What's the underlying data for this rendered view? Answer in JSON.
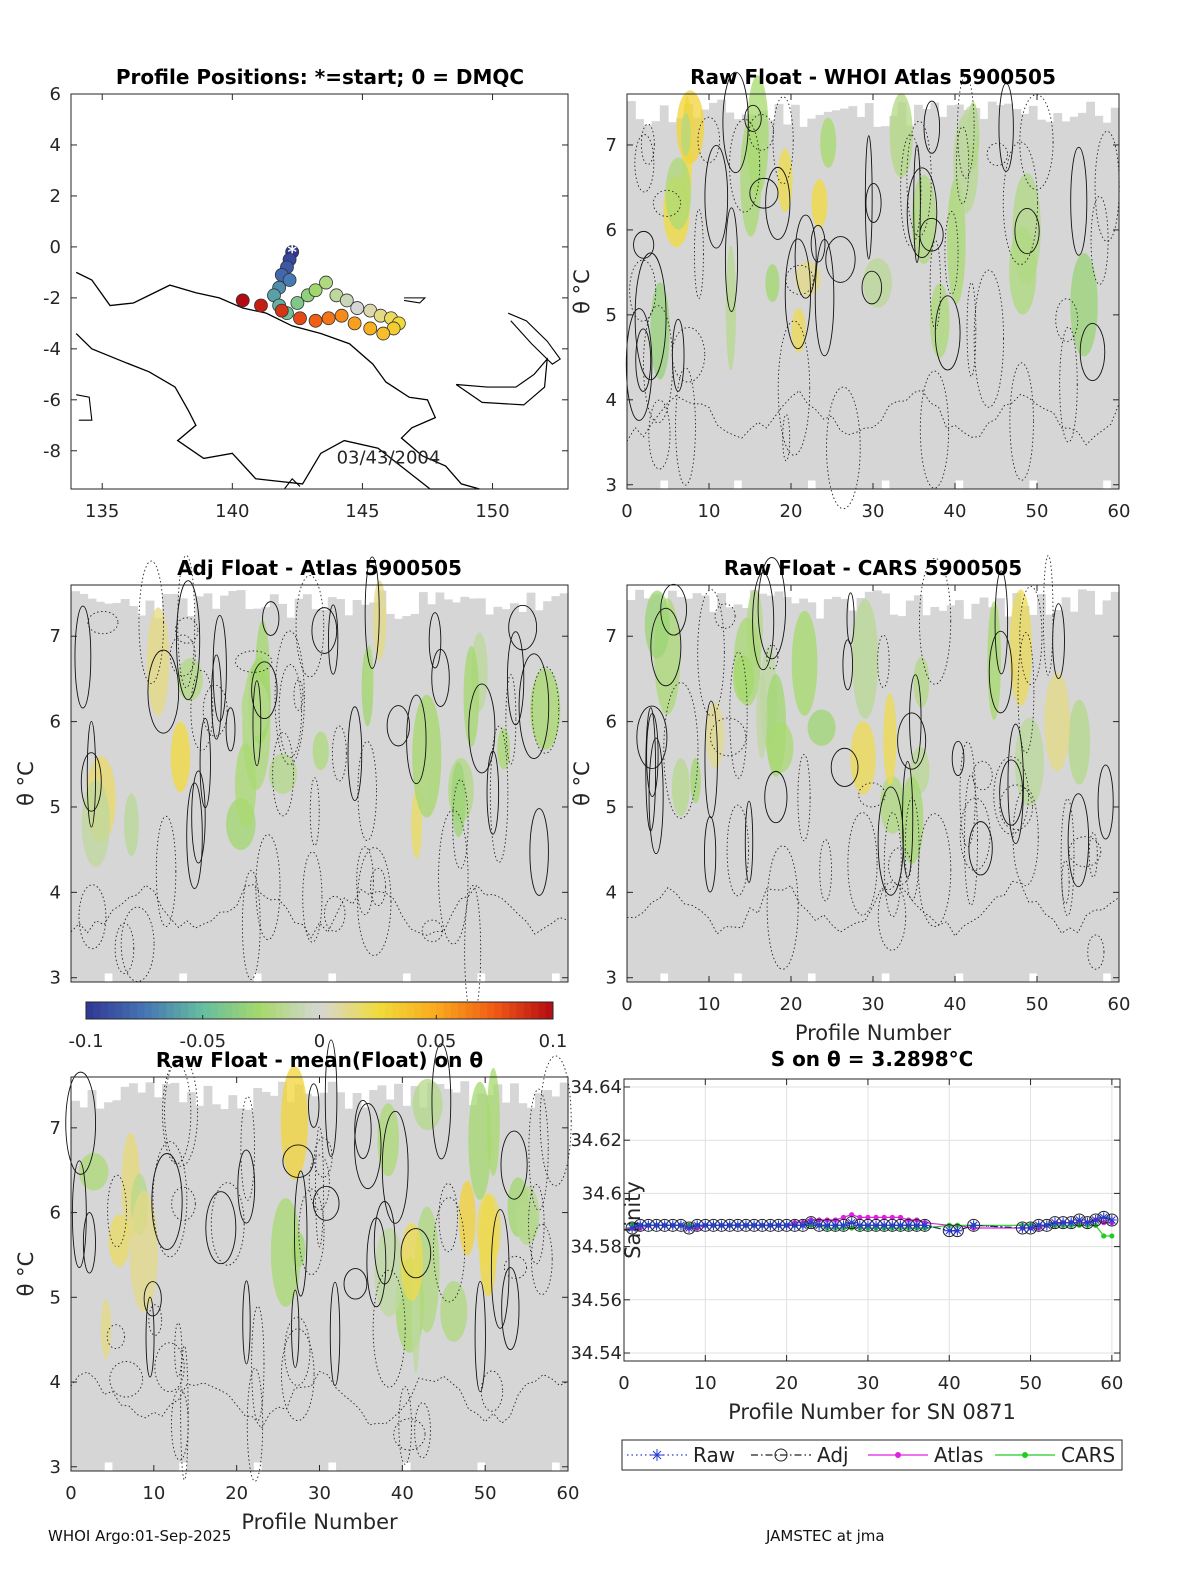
{
  "footer": {
    "left": "WHOI Argo:01-Sep-2025",
    "right": "JAMSTEC at jma"
  },
  "colors": {
    "raw": "#2a3bd4",
    "adj": "#222222",
    "atlas": "#e020e0",
    "cars": "#22cc22",
    "field": "#d6d6d6"
  },
  "chart_data": [
    {
      "id": "map",
      "type": "scatter",
      "title": "Profile Positions: *=start; 0 = DMQC",
      "xticks": [
        "135",
        "140",
        "145",
        "150"
      ],
      "yticks": [
        "6",
        "4",
        "2",
        "0",
        "-2",
        "-4",
        "-6",
        "-8"
      ],
      "xlim": [
        133.8,
        152.9
      ],
      "ylim": [
        -9.5,
        6
      ],
      "annotation": "03/43/2004",
      "track": [
        {
          "lon": 142.3,
          "lat": -0.2
        },
        {
          "lon": 142.2,
          "lat": -0.5
        },
        {
          "lon": 142.1,
          "lat": -0.8
        },
        {
          "lon": 141.9,
          "lat": -1.1
        },
        {
          "lon": 142.2,
          "lat": -1.3
        },
        {
          "lon": 141.8,
          "lat": -1.6
        },
        {
          "lon": 141.6,
          "lat": -1.9
        },
        {
          "lon": 141.8,
          "lat": -2.3
        },
        {
          "lon": 142.1,
          "lat": -2.6
        },
        {
          "lon": 142.5,
          "lat": -2.2
        },
        {
          "lon": 142.9,
          "lat": -1.9
        },
        {
          "lon": 143.2,
          "lat": -1.7
        },
        {
          "lon": 143.6,
          "lat": -1.4
        },
        {
          "lon": 144.0,
          "lat": -1.9
        },
        {
          "lon": 144.4,
          "lat": -2.1
        },
        {
          "lon": 144.8,
          "lat": -2.4
        },
        {
          "lon": 145.3,
          "lat": -2.5
        },
        {
          "lon": 145.7,
          "lat": -2.7
        },
        {
          "lon": 146.1,
          "lat": -2.8
        },
        {
          "lon": 146.4,
          "lat": -3.0
        },
        {
          "lon": 146.2,
          "lat": -3.2
        },
        {
          "lon": 145.8,
          "lat": -3.4
        },
        {
          "lon": 145.3,
          "lat": -3.2
        },
        {
          "lon": 144.7,
          "lat": -3.0
        },
        {
          "lon": 144.2,
          "lat": -2.7
        },
        {
          "lon": 143.7,
          "lat": -2.8
        },
        {
          "lon": 143.2,
          "lat": -2.9
        },
        {
          "lon": 142.6,
          "lat": -2.8
        },
        {
          "lon": 141.9,
          "lat": -2.5
        },
        {
          "lon": 141.1,
          "lat": -2.3
        },
        {
          "lon": 140.4,
          "lat": -2.1
        }
      ]
    },
    {
      "id": "raw-atlas",
      "type": "heatmap",
      "title": "Raw Float - WHOI Atlas  5900505",
      "xticks": [
        "0",
        "10",
        "20",
        "30",
        "40",
        "50",
        "60"
      ],
      "yticks": [
        "7",
        "6",
        "5",
        "4",
        "3"
      ],
      "xlim": [
        0,
        60
      ],
      "ylim": [
        2.95,
        7.6
      ],
      "ylabel": "θ °C",
      "xlabel": "",
      "seed": 11
    },
    {
      "id": "adj-atlas",
      "type": "heatmap",
      "title": "Adj Float - Atlas  5900505",
      "xticks": [],
      "yticks": [
        "7",
        "6",
        "5",
        "4",
        "3"
      ],
      "xlim": [
        0,
        60
      ],
      "ylim": [
        2.95,
        7.6
      ],
      "ylabel": "θ °C",
      "xlabel": "",
      "seed": 23
    },
    {
      "id": "raw-cars",
      "type": "heatmap",
      "title": "Raw Float - CARS  5900505",
      "xticks": [
        "0",
        "10",
        "20",
        "30",
        "40",
        "50",
        "60"
      ],
      "yticks": [
        "7",
        "6",
        "5",
        "4",
        "3"
      ],
      "xlim": [
        0,
        60
      ],
      "ylim": [
        2.95,
        7.6
      ],
      "ylabel": "θ °C",
      "xlabel": "Profile Number",
      "seed": 37
    },
    {
      "id": "raw-mean",
      "type": "heatmap",
      "title": "Raw Float - mean(Float) on θ",
      "xticks": [
        "0",
        "10",
        "20",
        "30",
        "40",
        "50",
        "60"
      ],
      "yticks": [
        "7",
        "6",
        "5",
        "4",
        "3"
      ],
      "xlim": [
        0,
        60
      ],
      "ylim": [
        2.95,
        7.6
      ],
      "ylabel": "θ °C",
      "xlabel": "Profile Number",
      "seed": 51
    },
    {
      "id": "colorbar",
      "type": "colorbar",
      "ticks": [
        "-0.1",
        "-0.05",
        "0",
        "0.05",
        "0.1"
      ],
      "range": [
        -0.1,
        0.1
      ]
    },
    {
      "id": "salinity",
      "type": "line",
      "title": "S on θ = 3.2898°C",
      "xlabel": "Profile Number for SN 0871",
      "ylabel": "Salinity",
      "xticks": [
        "0",
        "10",
        "20",
        "30",
        "40",
        "50",
        "60"
      ],
      "yticks": [
        "34.64",
        "34.62",
        "34.6",
        "34.58",
        "34.56",
        "34.54"
      ],
      "xlim": [
        0,
        61
      ],
      "ylim": [
        34.537,
        34.643
      ],
      "x": [
        1,
        2,
        3,
        4,
        5,
        6,
        7,
        8,
        9,
        10,
        11,
        12,
        13,
        14,
        15,
        16,
        17,
        18,
        19,
        20,
        21,
        22,
        23,
        24,
        25,
        26,
        27,
        28,
        29,
        30,
        31,
        32,
        33,
        34,
        35,
        36,
        37,
        40,
        41,
        43,
        49,
        50,
        51,
        52,
        53,
        54,
        55,
        56,
        57,
        58,
        59,
        60
      ],
      "series": [
        {
          "name": "Raw",
          "style": "raw",
          "values": [
            34.587,
            34.588,
            34.588,
            34.588,
            34.588,
            34.588,
            34.588,
            34.587,
            34.588,
            34.588,
            34.588,
            34.588,
            34.588,
            34.588,
            34.588,
            34.588,
            34.588,
            34.588,
            34.588,
            34.588,
            34.588,
            34.588,
            34.589,
            34.588,
            34.588,
            34.588,
            34.588,
            34.589,
            34.588,
            34.588,
            34.588,
            34.588,
            34.588,
            34.588,
            34.588,
            34.588,
            34.588,
            34.586,
            34.586,
            34.588,
            34.587,
            34.587,
            34.588,
            34.588,
            34.589,
            34.589,
            34.589,
            34.59,
            34.589,
            34.59,
            34.591,
            34.59
          ]
        },
        {
          "name": "Adj",
          "style": "adj",
          "values": [
            34.587,
            34.588,
            34.588,
            34.588,
            34.588,
            34.588,
            34.588,
            34.587,
            34.588,
            34.588,
            34.588,
            34.588,
            34.588,
            34.588,
            34.588,
            34.588,
            34.588,
            34.588,
            34.588,
            34.588,
            34.588,
            34.588,
            34.589,
            34.588,
            34.588,
            34.588,
            34.588,
            34.589,
            34.588,
            34.588,
            34.588,
            34.588,
            34.588,
            34.588,
            34.588,
            34.588,
            34.588,
            34.586,
            34.586,
            34.588,
            34.587,
            34.587,
            34.588,
            34.588,
            34.589,
            34.589,
            34.589,
            34.59,
            34.589,
            34.59,
            34.591,
            34.59
          ]
        },
        {
          "name": "Atlas",
          "style": "atlas",
          "values": [
            34.587,
            34.587,
            34.588,
            34.588,
            34.588,
            34.588,
            34.588,
            34.587,
            34.587,
            34.588,
            34.588,
            34.588,
            34.588,
            34.588,
            34.588,
            34.588,
            34.588,
            34.588,
            34.588,
            34.588,
            34.589,
            34.589,
            34.59,
            34.59,
            34.59,
            34.59,
            34.591,
            34.592,
            34.591,
            34.591,
            34.591,
            34.591,
            34.591,
            34.591,
            34.59,
            34.59,
            34.589,
            34.588,
            34.588,
            34.587,
            34.587,
            34.587,
            34.587,
            34.588,
            34.588,
            34.589,
            34.589,
            34.589,
            34.589,
            34.59,
            34.589,
            34.589
          ]
        },
        {
          "name": "CARS",
          "style": "cars",
          "values": [
            34.588,
            34.588,
            34.588,
            34.588,
            34.588,
            34.588,
            34.588,
            34.588,
            34.588,
            34.588,
            34.588,
            34.588,
            34.588,
            34.588,
            34.588,
            34.588,
            34.588,
            34.588,
            34.588,
            34.588,
            34.588,
            34.588,
            34.588,
            34.588,
            34.587,
            34.587,
            34.587,
            34.587,
            34.587,
            34.587,
            34.587,
            34.587,
            34.587,
            34.587,
            34.587,
            34.587,
            34.587,
            34.588,
            34.588,
            34.588,
            34.588,
            34.588,
            34.588,
            34.588,
            34.588,
            34.588,
            34.588,
            34.588,
            34.588,
            34.588,
            34.584,
            34.584
          ]
        }
      ],
      "legend": [
        "Raw",
        "Adj",
        "Atlas",
        "CARS"
      ]
    }
  ]
}
